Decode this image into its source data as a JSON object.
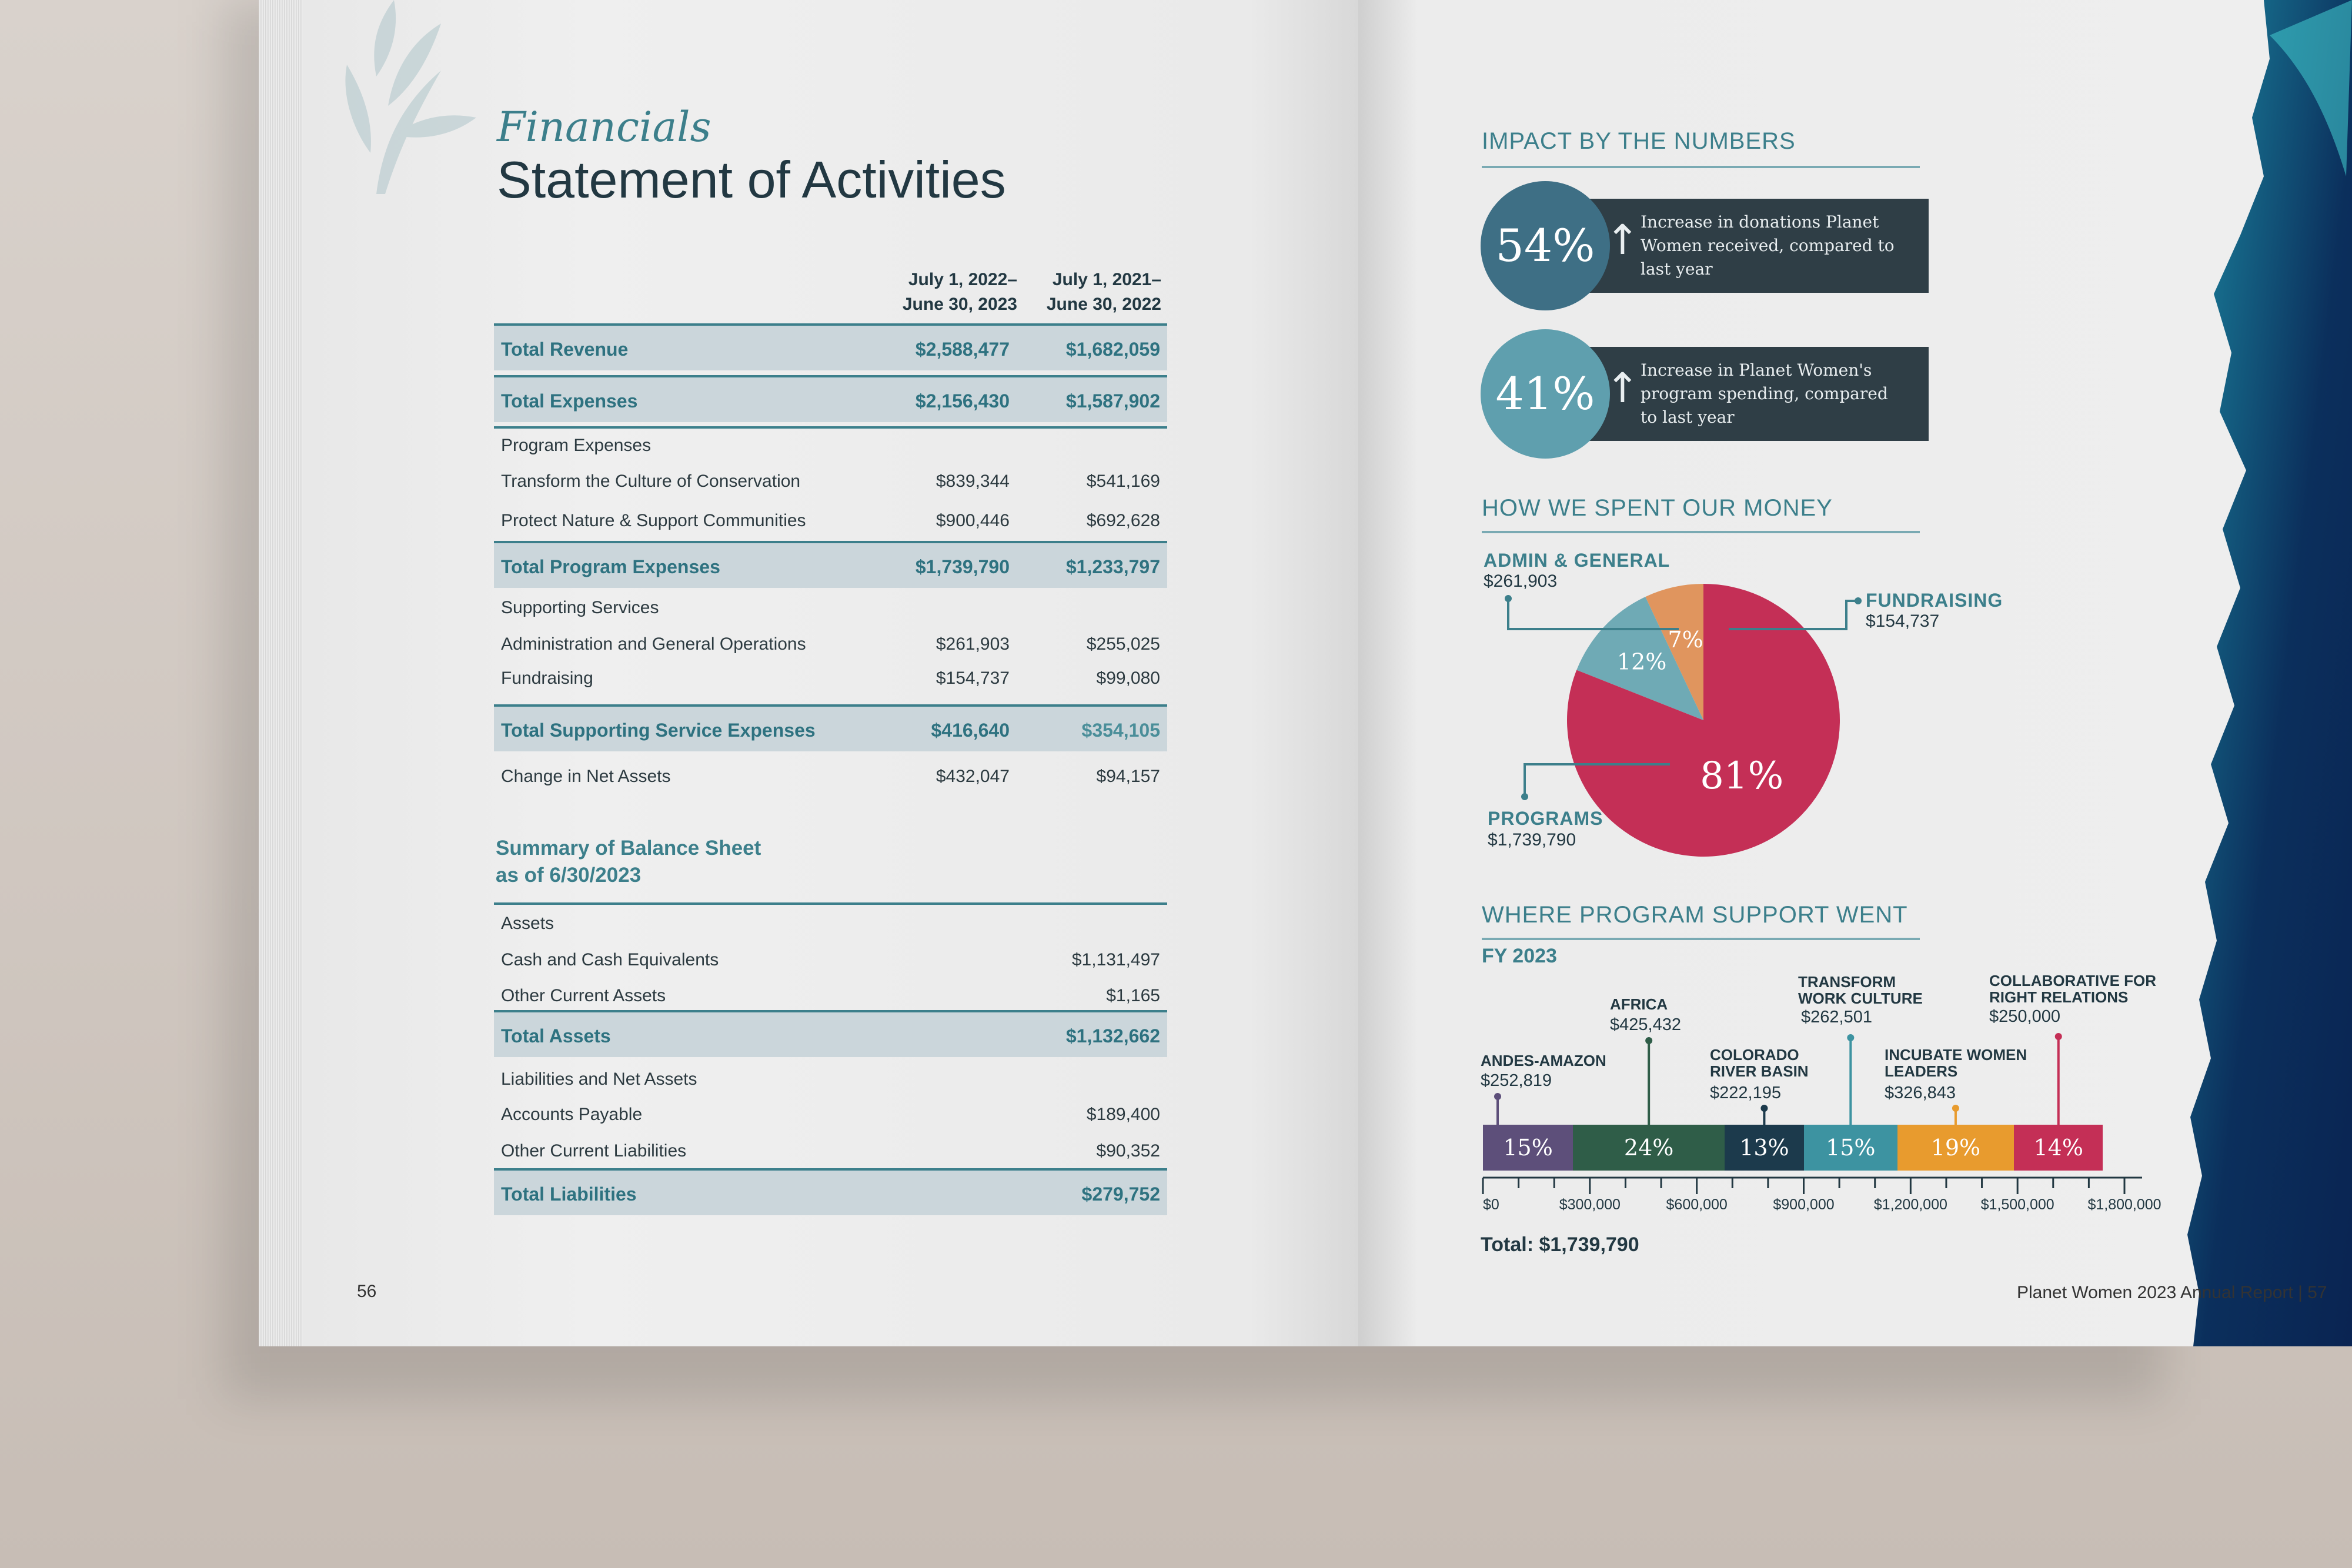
{
  "left_page": {
    "script_title": "Financials",
    "title": "Statement of Activities",
    "col1": [
      "July 1, 2022–",
      "June 30, 2023"
    ],
    "col2": [
      "July 1, 2021–",
      "June 30, 2022"
    ],
    "rows": [
      {
        "label": "Total Revenue",
        "v1": "$2,588,477",
        "v2": "$1,682,059",
        "total": true
      },
      {
        "label": "Total Expenses",
        "v1": "$2,156,430",
        "v2": "$1,587,902",
        "total": true
      },
      {
        "label": "Program Expenses",
        "v1": "",
        "v2": ""
      },
      {
        "label": "Transform the Culture of Conservation",
        "v1": "$839,344",
        "v2": "$541,169"
      },
      {
        "label": "Protect Nature & Support Communities",
        "v1": "$900,446",
        "v2": "$692,628"
      },
      {
        "label": "Total Program Expenses",
        "v1": "$1,739,790",
        "v2": "$1,233,797",
        "total": true
      },
      {
        "label": "Supporting Services",
        "v1": "",
        "v2": ""
      },
      {
        "label": "Administration and General Operations",
        "v1": "$261,903",
        "v2": "$255,025"
      },
      {
        "label": "Fundraising",
        "v1": "$154,737",
        "v2": "$99,080"
      },
      {
        "label": "Total Supporting Service Expenses",
        "v1": "$416,640",
        "v2": "$354,105",
        "total": true
      },
      {
        "label": "Change in Net Assets",
        "v1": "$432,047",
        "v2": "$94,157"
      }
    ],
    "balance_title": [
      "Summary of Balance Sheet",
      "as of 6/30/2023"
    ],
    "balance_rows": [
      {
        "label": "Assets",
        "v": ""
      },
      {
        "label": "Cash and Cash Equivalents",
        "v": "$1,131,497"
      },
      {
        "label": "Other Current Assets",
        "v": "$1,165"
      },
      {
        "label": "Total Assets",
        "v": "$1,132,662",
        "total": true
      },
      {
        "label": "Liabilities and Net Assets",
        "v": ""
      },
      {
        "label": "Accounts Payable",
        "v": "$189,400"
      },
      {
        "label": "Other Current Liabilities",
        "v": "$90,352"
      },
      {
        "label": "Total Liabilities",
        "v": "$279,752",
        "total": true
      }
    ],
    "page_number": "56"
  },
  "right_page": {
    "impact_title": "IMPACT BY THE NUMBERS",
    "stats": [
      {
        "value": "54%",
        "arrow": "↑",
        "text": "Increase in donations Planet Women received, compared to last year"
      },
      {
        "value": "41%",
        "arrow": "↑",
        "text": "Increase in Planet Women's program spending, compared to last year"
      }
    ],
    "spent_title": "HOW WE SPENT OUR MONEY",
    "program_title": "WHERE PROGRAM SUPPORT WENT",
    "fy": "FY 2023",
    "total": "Total: $1,739,790",
    "footer": "Planet Women 2023 Annual Report | 57"
  },
  "chart_data": [
    {
      "type": "pie",
      "title": "HOW WE SPENT OUR MONEY",
      "categories": [
        "PROGRAMS",
        "ADMIN & GENERAL",
        "FUNDRAISING"
      ],
      "amounts": [
        "$1,739,790",
        "$261,903",
        "$154,737"
      ],
      "values": [
        81,
        12,
        7
      ],
      "labels": [
        "81%",
        "12%",
        "7%"
      ],
      "colors": [
        "#c42f56",
        "#6faab5",
        "#e0955e"
      ]
    },
    {
      "type": "bar",
      "orientation": "stacked-horizontal",
      "title": "WHERE PROGRAM SUPPORT WENT",
      "categories": [
        "ANDES-AMAZON",
        "AFRICA",
        "COLORADO RIVER BASIN",
        "TRANSFORM WORK CULTURE",
        "INCUBATE WOMEN LEADERS",
        "COLLABORATIVE FOR RIGHT RELATIONS"
      ],
      "amounts": [
        "$252,819",
        "$425,432",
        "$222,195",
        "$262,501",
        "$326,843",
        "$250,000"
      ],
      "values": [
        252819,
        425432,
        222195,
        262501,
        326843,
        250000
      ],
      "percent_labels": [
        "15%",
        "24%",
        "13%",
        "15%",
        "19%",
        "14%"
      ],
      "colors": [
        "#5d4f7a",
        "#2f5d48",
        "#1c3a4c",
        "#3d93a1",
        "#e89b2e",
        "#c42f56"
      ],
      "xlim": [
        0,
        1800000
      ],
      "x_ticks": [
        "$0",
        "$300,000",
        "$600,000",
        "$900,000",
        "$1,200,000",
        "$1,500,000",
        "$1,800,000"
      ]
    }
  ]
}
